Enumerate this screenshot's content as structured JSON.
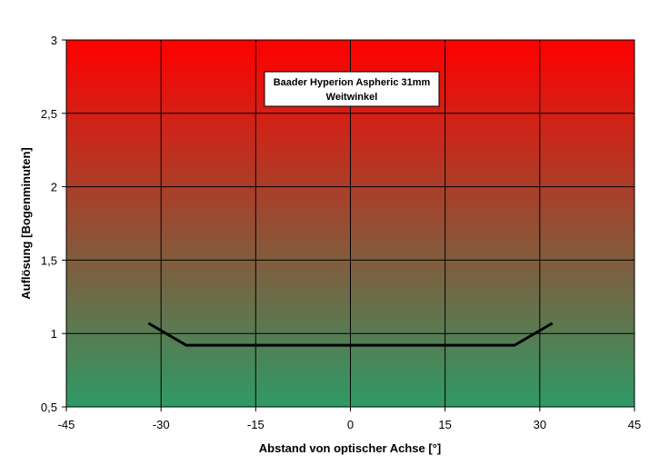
{
  "chart_data": {
    "type": "line",
    "title_lines": [
      "Baader Hyperion Aspheric 31mm",
      "Weitwinkel"
    ],
    "xlabel": "Abstand von optischer Achse [°]",
    "ylabel": "Auflösung [Bogenminuten]",
    "xlim": [
      -45,
      45
    ],
    "ylim": [
      0.5,
      3
    ],
    "x_ticks": [
      -45,
      -30,
      -15,
      0,
      15,
      30,
      45
    ],
    "x_tick_labels": [
      "-45",
      "-30",
      "-15",
      "0",
      "15",
      "30",
      "45"
    ],
    "y_ticks": [
      0.5,
      1,
      1.5,
      2,
      2.5,
      3
    ],
    "y_tick_labels": [
      "0,5",
      "1",
      "1,5",
      "2",
      "2,5",
      "3"
    ],
    "grid": true,
    "legend": "none",
    "background_gradient": {
      "top": "#ff0000",
      "bottom": "#2e9a66"
    },
    "line_color": "#000000",
    "series": [
      {
        "x": [
          -32,
          -26,
          26,
          32
        ],
        "y": [
          1.07,
          0.92,
          0.92,
          1.07
        ]
      }
    ]
  }
}
